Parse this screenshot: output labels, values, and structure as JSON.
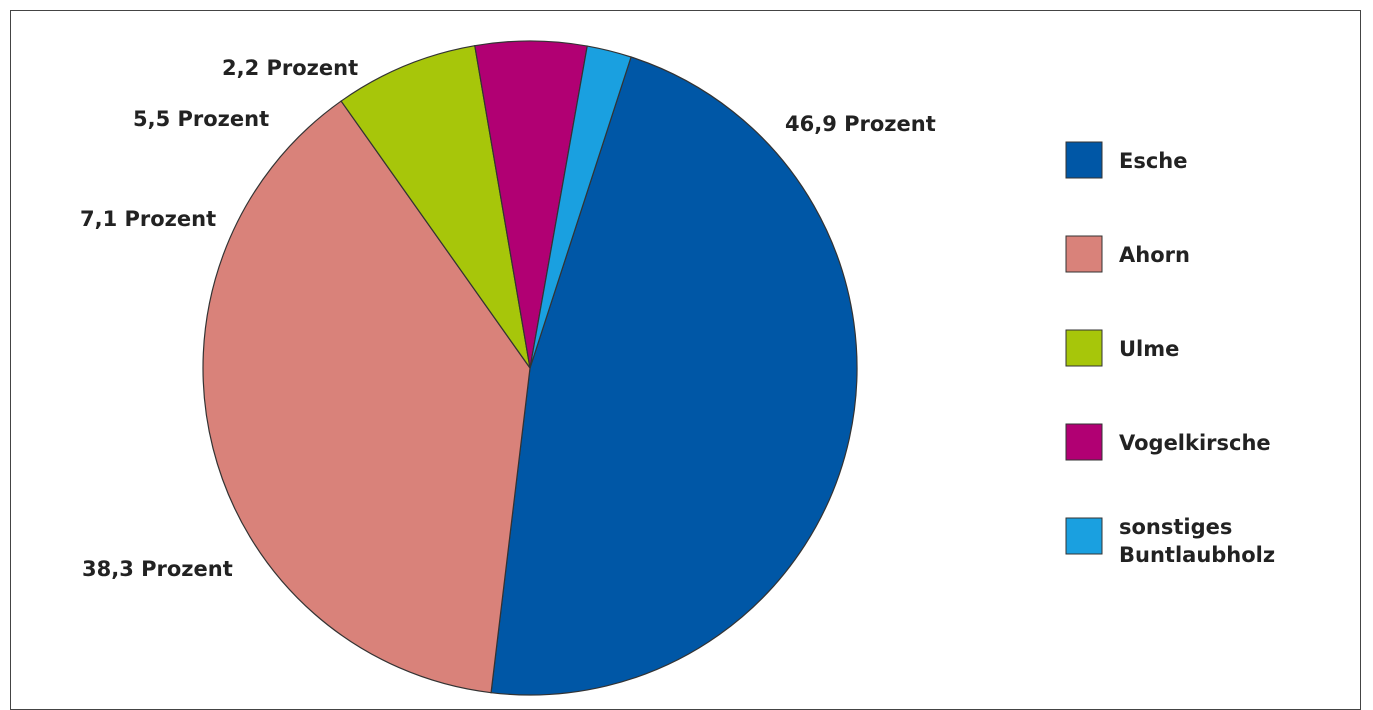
{
  "chart_data": {
    "type": "pie",
    "title": "",
    "start_angle_deg": 18,
    "direction": "clockwise",
    "legend_position": "right",
    "slices": [
      {
        "name": "Esche",
        "value": 46.9,
        "label": "46,9 Prozent",
        "color": "#0057A6"
      },
      {
        "name": "Ahorn",
        "value": 38.3,
        "label": "38,3 Prozent",
        "color": "#D9827A"
      },
      {
        "name": "Ulme",
        "value": 7.1,
        "label": "7,1 Prozent",
        "color": "#A7C60A"
      },
      {
        "name": "Vogelkirsche",
        "value": 5.5,
        "label": "5,5 Prozent",
        "color": "#B10073"
      },
      {
        "name": "sonstiges Buntlaubholz",
        "value": 2.2,
        "label": "2,2 Prozent",
        "color": "#1AA0E0"
      }
    ],
    "legend": [
      {
        "lines": [
          "Esche"
        ],
        "color": "#0057A6"
      },
      {
        "lines": [
          "Ahorn"
        ],
        "color": "#D9827A"
      },
      {
        "lines": [
          "Ulme"
        ],
        "color": "#A7C60A"
      },
      {
        "lines": [
          "Vogelkirsche"
        ],
        "color": "#B10073"
      },
      {
        "lines": [
          "sonstiges",
          "Buntlaubholz"
        ],
        "color": "#1AA0E0"
      }
    ]
  }
}
